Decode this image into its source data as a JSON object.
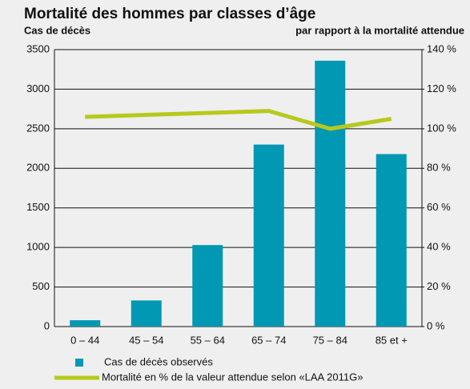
{
  "chart_data": {
    "type": "bar_line",
    "title": "Mortalité des hommes par classes d’âge",
    "y_label": "Cas de décès",
    "y2_label": "par rapport à la mortalité attendue",
    "categories": [
      "0 – 44",
      "45 – 54",
      "55 – 64",
      "65 – 74",
      "75 – 84",
      "85 et +"
    ],
    "series": [
      {
        "name": "Cas de décès observés",
        "color": "#0098b3",
        "values": [
          80,
          330,
          1030,
          2300,
          3360,
          2180
        ]
      },
      {
        "name": "Mortalité en % de la valeur attendue selon «LAA 2011G»",
        "color": "#b7c91c",
        "values": [
          106,
          107,
          108,
          109,
          100,
          105
        ],
        "axis": "y2"
      }
    ],
    "ylim": [
      0,
      3500
    ],
    "yticks": [
      0,
      500,
      1000,
      1500,
      2000,
      2500,
      3000,
      3500
    ],
    "y2lim": [
      0,
      140
    ],
    "y2ticks": [
      {
        "value": 0,
        "label": "0 %"
      },
      {
        "value": 20,
        "label": "20 %"
      },
      {
        "value": 40,
        "label": "40 %"
      },
      {
        "value": 60,
        "label": "60 %"
      },
      {
        "value": 80,
        "label": "80 %"
      },
      {
        "value": 100,
        "label": "100 %"
      },
      {
        "value": 120,
        "label": "120 %"
      },
      {
        "value": 140,
        "label": "140 %"
      }
    ],
    "grid": true
  }
}
